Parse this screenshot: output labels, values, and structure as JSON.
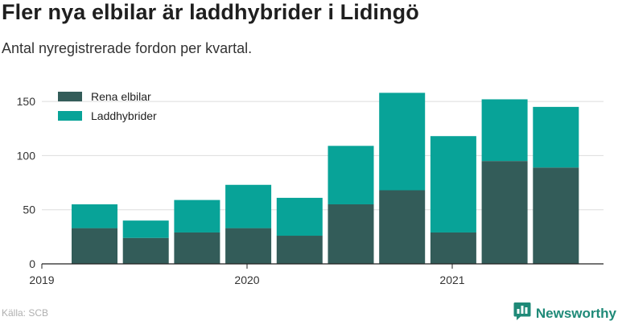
{
  "title": "Fler nya elbilar är laddhybrider i Lidingö",
  "subtitle": "Antal nyregistrerade fordon per kvartal.",
  "source": "Källa: SCB",
  "brand": "Newsworthy",
  "colors": {
    "rena_elbilar": "#335c59",
    "laddhybrider": "#08a398",
    "grid": "#dddddd",
    "axis_text": "#333333",
    "brand": "#1f8a78"
  },
  "icons": {
    "brand_logo": "bar-chart-speech-bubble-icon"
  },
  "chart_data": {
    "type": "bar",
    "stacked": true,
    "categories": [
      "2019 Q2",
      "2019 Q3",
      "2019 Q4",
      "2020 Q1",
      "2020 Q2",
      "2020 Q3",
      "2020 Q4",
      "2021 Q1",
      "2021 Q2",
      "2021 Q3"
    ],
    "series": [
      {
        "name": "Rena elbilar",
        "values": [
          33,
          24,
          29,
          33,
          26,
          55,
          68,
          29,
          95,
          89
        ]
      },
      {
        "name": "Laddhybrider",
        "values": [
          22,
          16,
          30,
          40,
          35,
          54,
          90,
          89,
          57,
          56
        ]
      }
    ],
    "x_tick_labels": [
      "2019",
      "2020",
      "2021"
    ],
    "y_ticks": [
      0,
      50,
      100,
      150
    ],
    "ylim": [
      0,
      162
    ],
    "grid": true,
    "legend_position": "top-left"
  }
}
